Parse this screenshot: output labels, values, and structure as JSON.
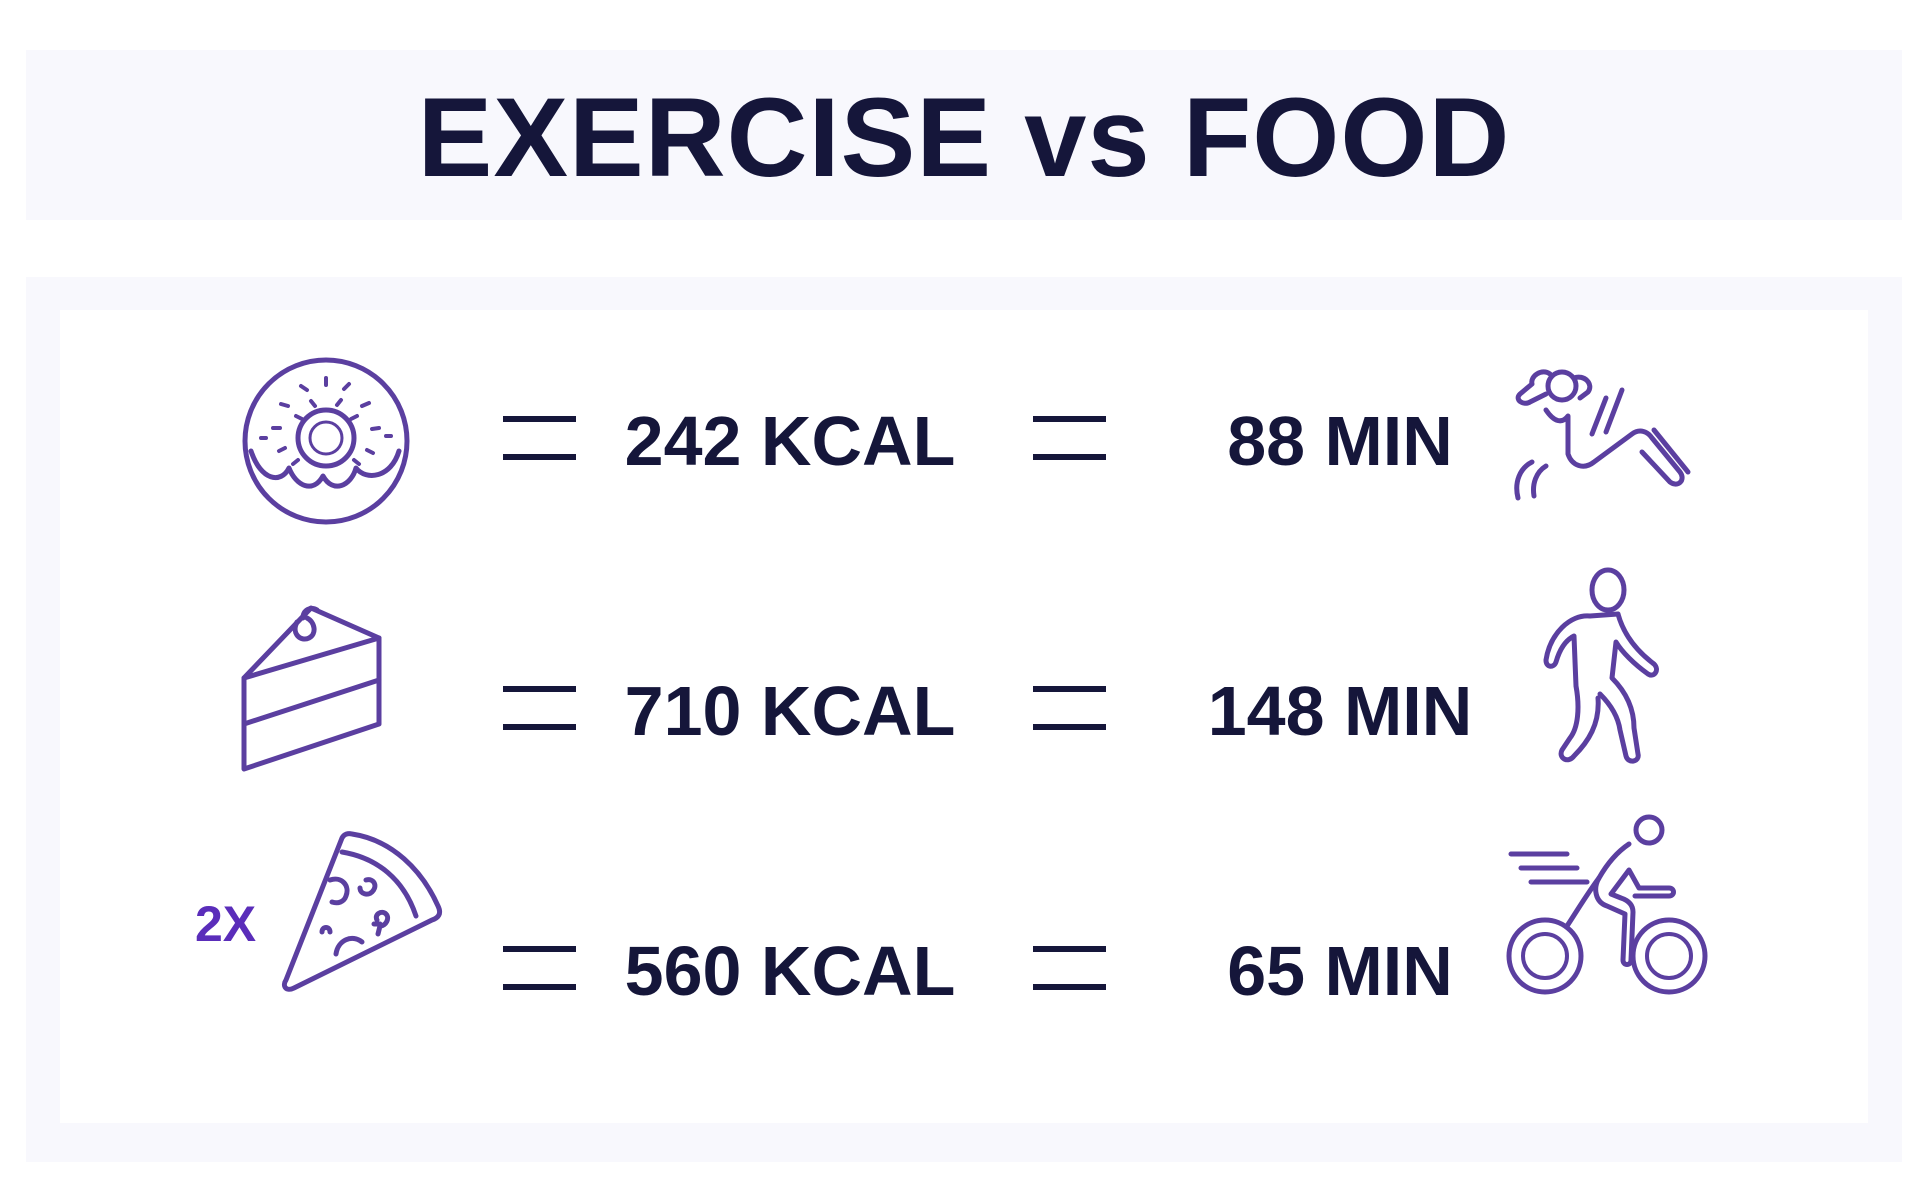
{
  "title": "EXERCISE vs FOOD",
  "accent_color": "#5b3fa0",
  "text_color": "#15163a",
  "rows": [
    {
      "food_icon": "donut-icon",
      "multiplier": "",
      "kcal": "242 KCAL",
      "minutes": "88 MIN",
      "exercise_icon": "sit-ups-icon"
    },
    {
      "food_icon": "cake-slice-icon",
      "multiplier": "",
      "kcal": "710 KCAL",
      "minutes": "148 MIN",
      "exercise_icon": "walking-icon"
    },
    {
      "food_icon": "pizza-slice-icon",
      "multiplier": "2X",
      "kcal": "560 KCAL",
      "minutes": "65 MIN",
      "exercise_icon": "cycling-icon"
    }
  ]
}
